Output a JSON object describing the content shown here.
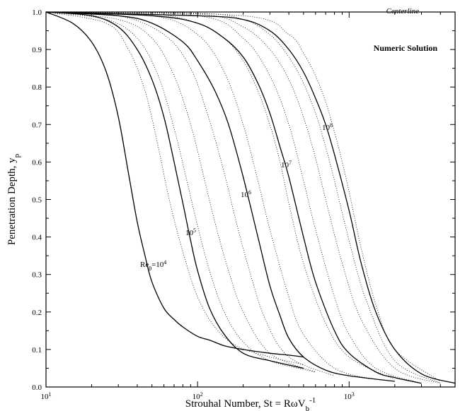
{
  "chart_data": {
    "type": "line",
    "title": "",
    "xlabel": "Strouhal Number, St = RωV",
    "xlabel_sub": "b",
    "xlabel_sup": "-1",
    "ylabel": "Penetration Depth, y",
    "ylabel_sub": "p",
    "x_scale": "log",
    "xlim": [
      10,
      5000
    ],
    "ylim": [
      0.0,
      1.0
    ],
    "grid": false,
    "x_ticks": [
      {
        "value": 10,
        "base": "10",
        "exp": "1"
      },
      {
        "value": 100,
        "base": "10",
        "exp": "2"
      },
      {
        "value": 1000,
        "base": "10",
        "exp": "3"
      }
    ],
    "y_ticks": [
      "0.0",
      "0.1",
      "0.2",
      "0.3",
      "0.4",
      "0.5",
      "0.6",
      "0.7",
      "0.8",
      "0.9",
      "1.0"
    ],
    "annotations": {
      "numeric_solution": "Numeric Solution",
      "centerline": "Centerline",
      "re_prefix": "Re",
      "re_sub": "θ",
      "re_eq": "=",
      "re_base": "10",
      "re_exp4": "4",
      "re_exp5": "5",
      "re_exp6": "6",
      "re_exp7": "7",
      "re_exp8": "8"
    },
    "series": [
      {
        "label_exp": "4",
        "style": "solid",
        "x": [
          10,
          15,
          20,
          25,
          30,
          35,
          40,
          45,
          50,
          60,
          70,
          80,
          100,
          120,
          150,
          200,
          300,
          400,
          500
        ],
        "y": [
          1.0,
          0.97,
          0.92,
          0.84,
          0.72,
          0.57,
          0.44,
          0.35,
          0.28,
          0.21,
          0.18,
          0.16,
          0.135,
          0.125,
          0.11,
          0.1,
          0.09,
          0.085,
          0.08
        ]
      },
      {
        "label_exp": "5",
        "style": "solid",
        "x": [
          10,
          20,
          30,
          40,
          50,
          60,
          70,
          80,
          90,
          100,
          120,
          150,
          200,
          300,
          500
        ],
        "y": [
          1.0,
          0.99,
          0.96,
          0.9,
          0.82,
          0.72,
          0.6,
          0.49,
          0.39,
          0.31,
          0.21,
          0.14,
          0.09,
          0.07,
          0.05
        ]
      },
      {
        "label_exp": "6",
        "style": "solid",
        "x": [
          10,
          30,
          50,
          80,
          100,
          130,
          160,
          200,
          250,
          300,
          350,
          400,
          500,
          700,
          1000,
          2000
        ],
        "y": [
          1.0,
          0.99,
          0.97,
          0.92,
          0.87,
          0.79,
          0.7,
          0.56,
          0.4,
          0.27,
          0.19,
          0.13,
          0.08,
          0.045,
          0.03,
          0.015
        ]
      },
      {
        "label_exp": "7",
        "style": "solid",
        "x": [
          10,
          50,
          100,
          150,
          200,
          250,
          300,
          350,
          400,
          500,
          600,
          800,
          1000,
          1500,
          2000,
          3000
        ],
        "y": [
          1.0,
          0.99,
          0.97,
          0.93,
          0.88,
          0.81,
          0.73,
          0.64,
          0.56,
          0.4,
          0.28,
          0.15,
          0.09,
          0.04,
          0.025,
          0.01
        ]
      },
      {
        "label_exp": "8",
        "style": "solid",
        "x": [
          10,
          100,
          200,
          300,
          400,
          500,
          600,
          700,
          800,
          1000,
          1200,
          1500,
          2000,
          3000,
          5000
        ],
        "y": [
          1.0,
          0.99,
          0.98,
          0.95,
          0.9,
          0.84,
          0.77,
          0.7,
          0.62,
          0.47,
          0.33,
          0.2,
          0.1,
          0.035,
          0.01
        ]
      },
      {
        "label_exp": "",
        "style": "dotted",
        "x": [
          10,
          25,
          35,
          45,
          55,
          65,
          80,
          100,
          130,
          180,
          300,
          500
        ],
        "y": [
          1.0,
          0.97,
          0.9,
          0.79,
          0.64,
          0.5,
          0.36,
          0.24,
          0.16,
          0.11,
          0.08,
          0.06
        ]
      },
      {
        "label_exp": "",
        "style": "dotted",
        "x": [
          10,
          25,
          40,
          55,
          70,
          85,
          100,
          120,
          150,
          200,
          300,
          600
        ],
        "y": [
          1.0,
          0.98,
          0.93,
          0.83,
          0.69,
          0.55,
          0.43,
          0.31,
          0.2,
          0.12,
          0.07,
          0.04
        ]
      },
      {
        "label_exp": "",
        "style": "dotted",
        "x": [
          10,
          30,
          50,
          70,
          90,
          110,
          130,
          160,
          200,
          300,
          600
        ],
        "y": [
          1.0,
          0.98,
          0.93,
          0.83,
          0.7,
          0.56,
          0.44,
          0.31,
          0.2,
          0.09,
          0.04
        ]
      },
      {
        "label_exp": "",
        "style": "dotted",
        "x": [
          10,
          30,
          60,
          90,
          120,
          150,
          180,
          220,
          280,
          400,
          800
        ],
        "y": [
          1.0,
          0.99,
          0.94,
          0.85,
          0.71,
          0.57,
          0.44,
          0.31,
          0.18,
          0.08,
          0.03
        ]
      },
      {
        "label_exp": "",
        "style": "dotted",
        "x": [
          10,
          50,
          100,
          150,
          200,
          250,
          300,
          400,
          500,
          800,
          1500
        ],
        "y": [
          1.0,
          0.99,
          0.94,
          0.84,
          0.7,
          0.55,
          0.42,
          0.24,
          0.14,
          0.05,
          0.02
        ]
      },
      {
        "label_exp": "",
        "style": "dotted",
        "x": [
          10,
          50,
          100,
          150,
          200,
          250,
          300,
          350,
          400,
          500,
          700,
          1000,
          2000
        ],
        "y": [
          1.0,
          0.995,
          0.97,
          0.93,
          0.87,
          0.79,
          0.7,
          0.6,
          0.49,
          0.33,
          0.17,
          0.08,
          0.02
        ]
      },
      {
        "label_exp": "",
        "style": "dotted",
        "x": [
          10,
          100,
          200,
          300,
          400,
          500,
          600,
          800,
          1000,
          1500,
          3000
        ],
        "y": [
          1.0,
          0.99,
          0.93,
          0.83,
          0.7,
          0.55,
          0.42,
          0.24,
          0.14,
          0.05,
          0.01
        ]
      },
      {
        "label_exp": "",
        "style": "dotted",
        "x": [
          10,
          100,
          200,
          300,
          400,
          500,
          600,
          700,
          900,
          1200,
          2000,
          4000
        ],
        "y": [
          1.0,
          0.995,
          0.96,
          0.9,
          0.82,
          0.72,
          0.61,
          0.5,
          0.33,
          0.18,
          0.05,
          0.01
        ]
      },
      {
        "label_exp": "",
        "style": "dotted",
        "x": [
          10,
          100,
          200,
          300,
          400,
          500,
          600,
          700,
          800,
          1000,
          1300,
          2000,
          4000
        ],
        "y": [
          1.0,
          0.997,
          0.98,
          0.94,
          0.88,
          0.81,
          0.73,
          0.64,
          0.55,
          0.39,
          0.23,
          0.07,
          0.01
        ]
      },
      {
        "label_exp": "",
        "style": "dotted",
        "x": [
          10,
          200,
          400,
          500,
          600,
          700,
          800,
          900,
          1000,
          1200,
          1500,
          2000,
          4000
        ],
        "y": [
          1.0,
          0.99,
          0.94,
          0.89,
          0.83,
          0.76,
          0.68,
          0.6,
          0.52,
          0.37,
          0.22,
          0.1,
          0.015
        ]
      }
    ]
  }
}
